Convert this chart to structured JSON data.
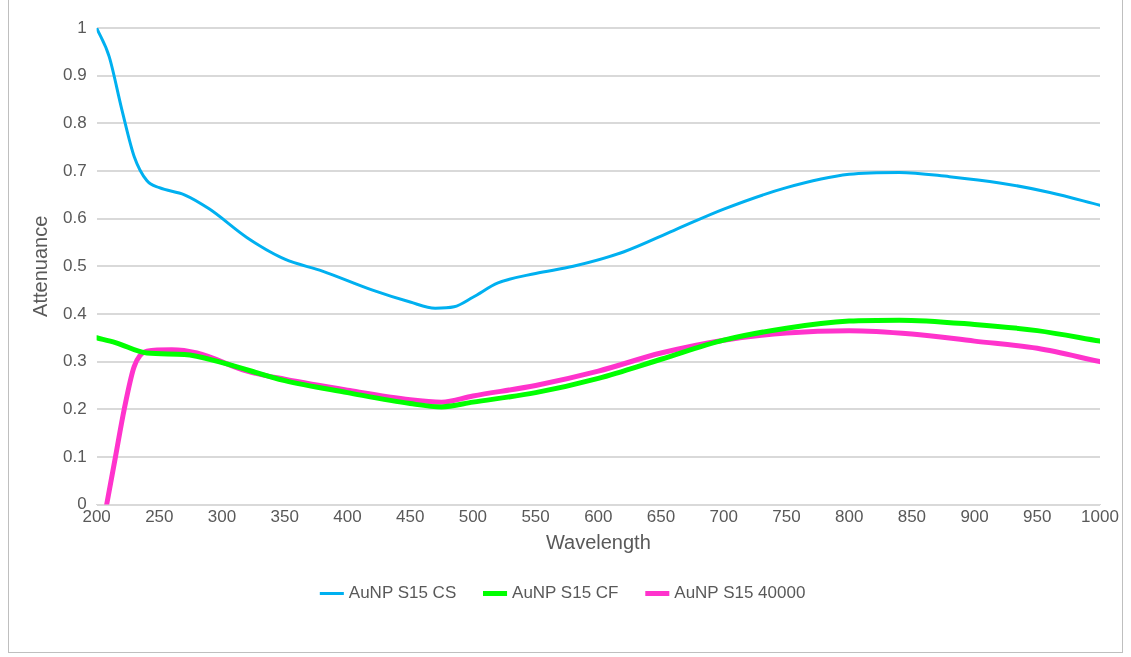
{
  "chart_data": {
    "type": "line",
    "xlabel": "Wavelength",
    "ylabel": "Attenuance",
    "xlim": [
      200,
      1000
    ],
    "xticks": [
      200,
      250,
      300,
      350,
      400,
      450,
      500,
      550,
      600,
      650,
      700,
      750,
      800,
      850,
      900,
      950,
      1000
    ],
    "ylim": [
      0,
      1
    ],
    "yticks": [
      0,
      0.1,
      0.2,
      0.3,
      0.4,
      0.5,
      0.6,
      0.7,
      0.8,
      0.9,
      1
    ],
    "grid": "y",
    "legend": "bottom",
    "marker": "none",
    "line_style": "solid",
    "series": [
      {
        "name": "AuNP S15 CS",
        "color": "#00b0f0",
        "x": [
          200,
          210,
          220,
          230,
          240,
          250,
          270,
          290,
          320,
          350,
          380,
          420,
          450,
          470,
          485,
          500,
          520,
          550,
          580,
          620,
          660,
          700,
          750,
          800,
          840,
          880,
          920,
          960,
          1000
        ],
        "values": [
          1.0,
          0.94,
          0.83,
          0.73,
          0.68,
          0.665,
          0.65,
          0.62,
          0.56,
          0.515,
          0.49,
          0.45,
          0.425,
          0.412,
          0.415,
          0.435,
          0.465,
          0.485,
          0.5,
          0.53,
          0.575,
          0.62,
          0.665,
          0.693,
          0.697,
          0.688,
          0.675,
          0.655,
          0.628
        ]
      },
      {
        "name": "AuNP S15 CF",
        "color": "#00ff00",
        "x": [
          200,
          215,
          240,
          270,
          300,
          350,
          400,
          450,
          475,
          500,
          550,
          600,
          650,
          700,
          750,
          800,
          840,
          900,
          950,
          1000
        ],
        "values": [
          0.35,
          0.34,
          0.318,
          0.315,
          0.298,
          0.26,
          0.235,
          0.212,
          0.205,
          0.215,
          0.235,
          0.265,
          0.305,
          0.345,
          0.37,
          0.385,
          0.387,
          0.378,
          0.365,
          0.343
        ]
      },
      {
        "name": "AuNP S15 40000",
        "color": "#ff33cc",
        "x": [
          208,
          215,
          222,
          230,
          240,
          260,
          280,
          320,
          350,
          400,
          450,
          475,
          500,
          550,
          600,
          650,
          700,
          750,
          800,
          850,
          900,
          950,
          1000
        ],
        "values": [
          0.0,
          0.1,
          0.2,
          0.29,
          0.322,
          0.325,
          0.318,
          0.28,
          0.263,
          0.24,
          0.22,
          0.215,
          0.228,
          0.25,
          0.28,
          0.318,
          0.345,
          0.36,
          0.365,
          0.358,
          0.343,
          0.328,
          0.3
        ]
      }
    ]
  }
}
